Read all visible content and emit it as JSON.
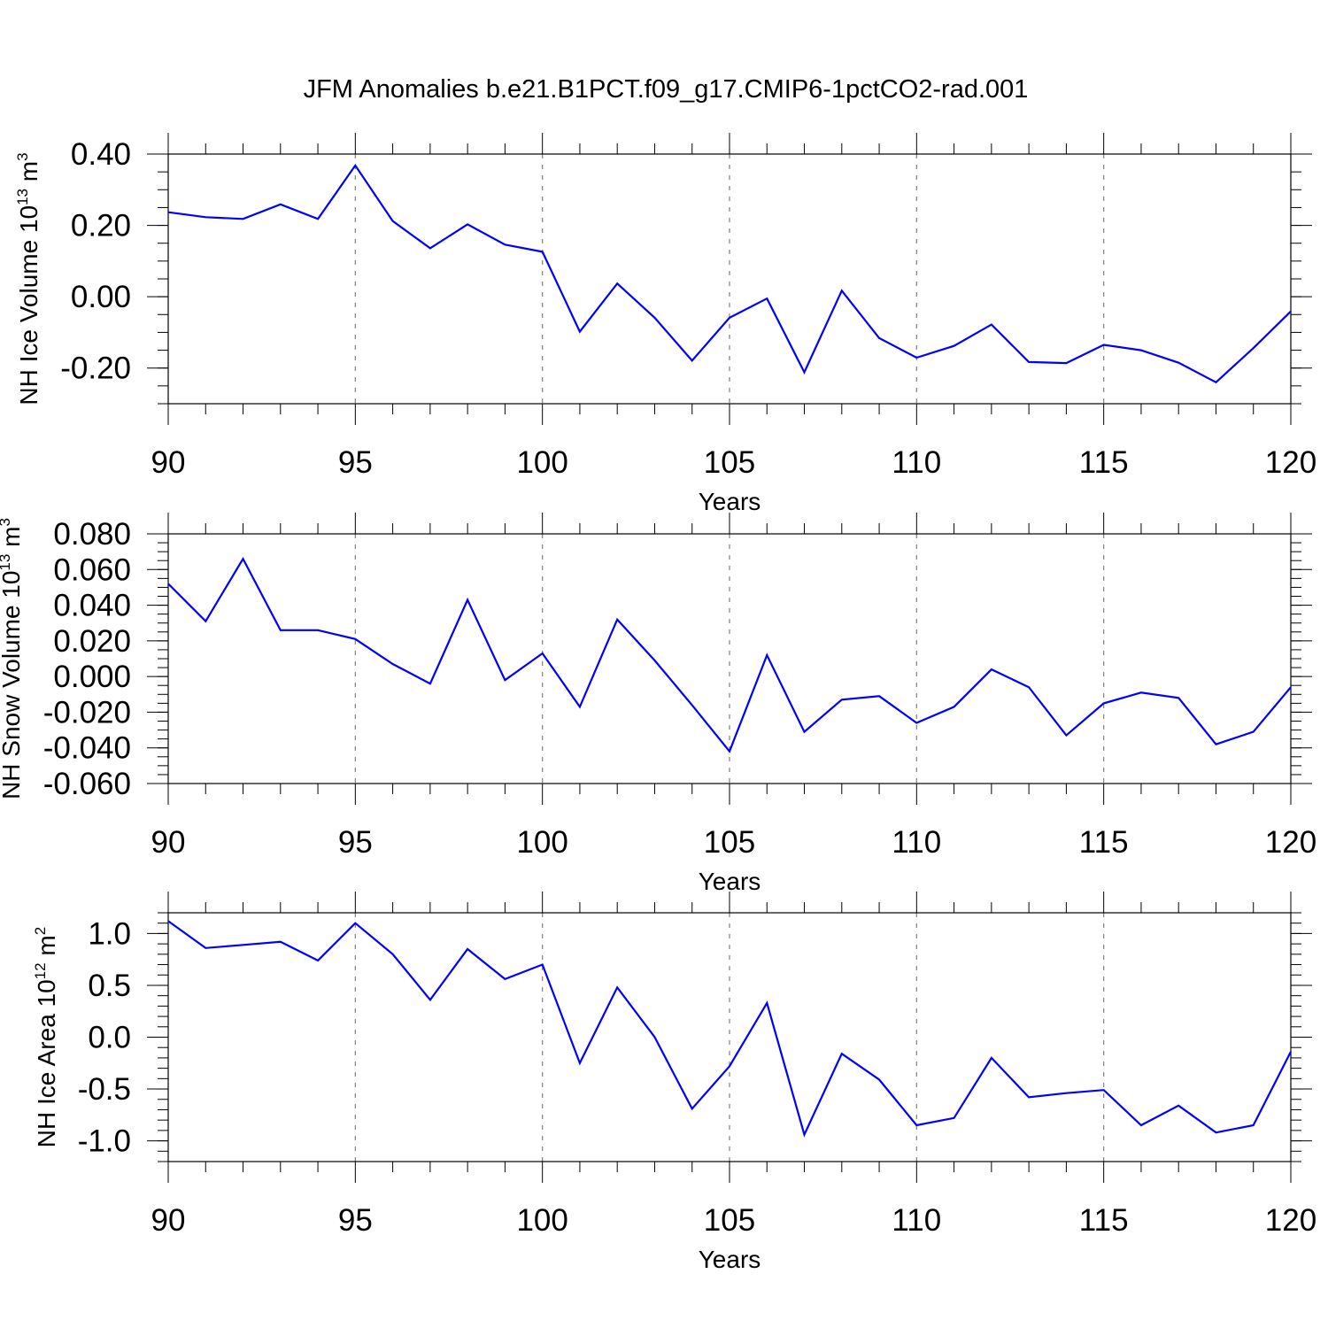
{
  "title": "JFM Anomalies b.e21.B1PCT.f09_g17.CMIP6-1pctCO2-rad.001",
  "colors": {
    "line": "#0000ff",
    "frame": "#000000",
    "grid": "#808080"
  },
  "chart_data": [
    {
      "type": "line",
      "xlabel": "Years",
      "ylabel": "NH Ice Volume 10",
      "ylabel_exp": "13",
      "ylabel_unit": " m",
      "ylabel_unit_exp": "3",
      "xlim": [
        90,
        120
      ],
      "ylim": [
        -0.3,
        0.4
      ],
      "xticks": [
        90,
        95,
        100,
        105,
        110,
        115,
        120
      ],
      "xtick_labels": [
        "90",
        "95",
        "100",
        "105",
        "110",
        "115",
        "120"
      ],
      "yticks": [
        -0.2,
        0,
        0.2,
        0.4
      ],
      "ytick_labels": [
        "-0.20",
        "0.00",
        "0.20",
        "0.40"
      ],
      "grid": "vertical dashed at major x ticks",
      "x": [
        90,
        91,
        92,
        93,
        94,
        95,
        96,
        97,
        98,
        99,
        100,
        101,
        102,
        103,
        104,
        105,
        106,
        107,
        108,
        109,
        110,
        111,
        112,
        113,
        114,
        115,
        116,
        117,
        118,
        119,
        120
      ],
      "values": [
        0.237,
        0.223,
        0.218,
        0.259,
        0.218,
        0.368,
        0.212,
        0.136,
        0.203,
        0.146,
        0.126,
        -0.098,
        0.037,
        -0.059,
        -0.179,
        -0.059,
        -0.005,
        -0.212,
        0.017,
        -0.116,
        -0.171,
        -0.138,
        -0.078,
        -0.183,
        -0.186,
        -0.135,
        -0.15,
        -0.185,
        -0.24,
        -0.144,
        -0.041
      ]
    },
    {
      "type": "line",
      "xlabel": "Years",
      "ylabel": "NH Snow Volume 10",
      "ylabel_exp": "13",
      "ylabel_unit": " m",
      "ylabel_unit_exp": "3",
      "xlim": [
        90,
        120
      ],
      "ylim": [
        -0.06,
        0.08
      ],
      "xticks": [
        90,
        95,
        100,
        105,
        110,
        115,
        120
      ],
      "xtick_labels": [
        "90",
        "95",
        "100",
        "105",
        "110",
        "115",
        "120"
      ],
      "yticks": [
        -0.06,
        -0.04,
        -0.02,
        0,
        0.02,
        0.04,
        0.06,
        0.08
      ],
      "ytick_labels": [
        "-0.060",
        "-0.040",
        "-0.020",
        "0.000",
        "0.020",
        "0.040",
        "0.060",
        "0.080"
      ],
      "grid": "vertical dashed at major x ticks",
      "x": [
        90,
        91,
        92,
        93,
        94,
        95,
        96,
        97,
        98,
        99,
        100,
        101,
        102,
        103,
        104,
        105,
        106,
        107,
        108,
        109,
        110,
        111,
        112,
        113,
        114,
        115,
        116,
        117,
        118,
        119,
        120
      ],
      "values": [
        0.052,
        0.031,
        0.066,
        0.026,
        0.026,
        0.021,
        0.007,
        -0.004,
        0.043,
        -0.002,
        0.013,
        -0.017,
        0.032,
        0.009,
        -0.016,
        -0.042,
        0.012,
        -0.031,
        -0.013,
        -0.011,
        -0.026,
        -0.017,
        0.004,
        -0.006,
        -0.033,
        -0.015,
        -0.009,
        -0.012,
        -0.038,
        -0.031,
        -0.006
      ]
    },
    {
      "type": "line",
      "xlabel": "Years",
      "ylabel": "NH Ice Area 10",
      "ylabel_exp": "12",
      "ylabel_unit": " m",
      "ylabel_unit_exp": "2",
      "xlim": [
        90,
        120
      ],
      "ylim": [
        -1.2,
        1.2
      ],
      "xticks": [
        90,
        95,
        100,
        105,
        110,
        115,
        120
      ],
      "xtick_labels": [
        "90",
        "95",
        "100",
        "105",
        "110",
        "115",
        "120"
      ],
      "yticks": [
        -1.0,
        -0.5,
        0,
        0.5,
        1.0
      ],
      "ytick_labels": [
        "-1.0",
        "-0.5",
        "0.0",
        "0.5",
        "1.0"
      ],
      "grid": "vertical dashed at major x ticks",
      "x": [
        90,
        91,
        92,
        93,
        94,
        95,
        96,
        97,
        98,
        99,
        100,
        101,
        102,
        103,
        104,
        105,
        106,
        107,
        108,
        109,
        110,
        111,
        112,
        113,
        114,
        115,
        116,
        117,
        118,
        119,
        120
      ],
      "values": [
        1.12,
        0.86,
        0.89,
        0.92,
        0.74,
        1.1,
        0.8,
        0.36,
        0.85,
        0.56,
        0.7,
        -0.25,
        0.48,
        0.0,
        -0.69,
        -0.28,
        0.33,
        -0.94,
        -0.16,
        -0.41,
        -0.85,
        -0.78,
        -0.2,
        -0.58,
        -0.54,
        -0.51,
        -0.85,
        -0.66,
        -0.92,
        -0.85,
        -0.14
      ]
    }
  ]
}
